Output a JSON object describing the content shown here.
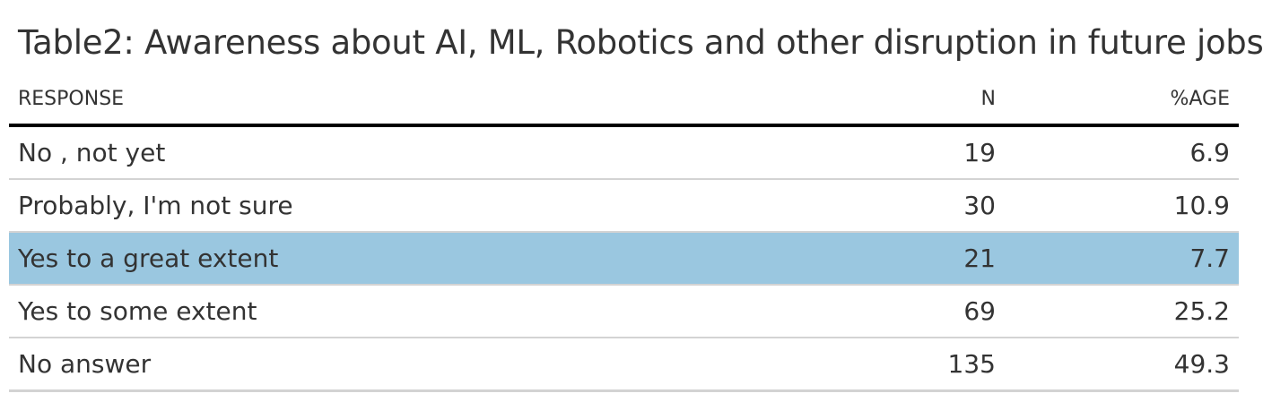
{
  "title": "Table2: Awareness about AI, ML, Robotics and other disruption in future jobs",
  "columns": {
    "response": "RESPONSE",
    "n": "N",
    "pct": "%AGE"
  },
  "rows": [
    {
      "response": "No , not yet",
      "n": "19",
      "pct": "6.9",
      "highlighted": false
    },
    {
      "response": "Probably, I'm not sure",
      "n": "30",
      "pct": "10.9",
      "highlighted": false
    },
    {
      "response": "Yes to a great extent",
      "n": "21",
      "pct": "7.7",
      "highlighted": true
    },
    {
      "response": "Yes to some extent",
      "n": "69",
      "pct": "25.2",
      "highlighted": false
    },
    {
      "response": "No answer",
      "n": "135",
      "pct": "49.3",
      "highlighted": false
    }
  ],
  "colors": {
    "highlight_row": "#9ac7e0",
    "text": "#333333",
    "header_rule": "#000000",
    "row_rule": "#d3d3d3"
  },
  "chart_data": {
    "type": "table",
    "title": "Table2: Awareness about AI, ML, Robotics and other disruption in future jobs",
    "columns": [
      "RESPONSE",
      "N",
      "%AGE"
    ],
    "rows": [
      [
        "No , not yet",
        19,
        6.9
      ],
      [
        "Probably, I'm not sure",
        30,
        10.9
      ],
      [
        "Yes to a great extent",
        21,
        7.7
      ],
      [
        "Yes to some extent",
        69,
        25.2
      ],
      [
        "No answer",
        135,
        49.3
      ]
    ]
  }
}
